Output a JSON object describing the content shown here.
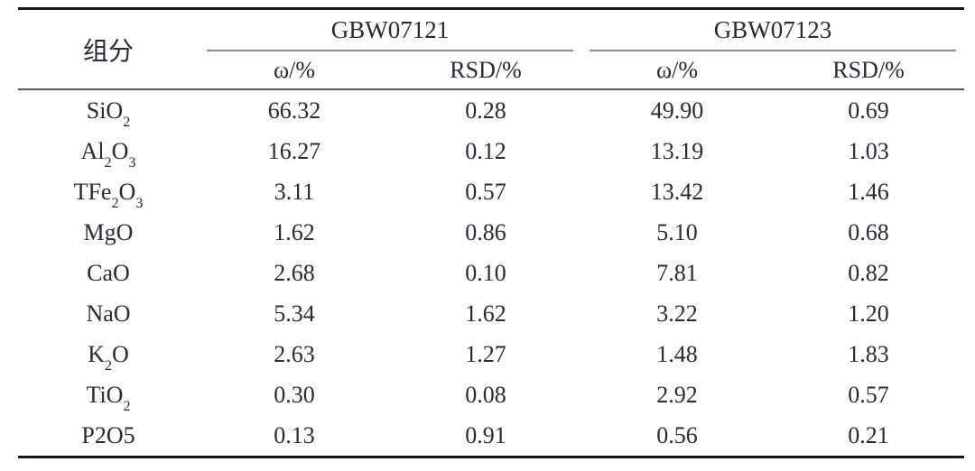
{
  "table": {
    "component_header": "组分",
    "groups": [
      {
        "label": "GBW07121",
        "columns": [
          "ω/%",
          "RSD/%"
        ]
      },
      {
        "label": "GBW07123",
        "columns": [
          "ω/%",
          "RSD/%"
        ]
      }
    ],
    "rows": [
      {
        "component": "SiO_2",
        "values": [
          "66.32",
          "0.28",
          "49.90",
          "0.69"
        ]
      },
      {
        "component": "Al_2O_3",
        "values": [
          "16.27",
          "0.12",
          "13.19",
          "1.03"
        ]
      },
      {
        "component": "TFe_2O_3",
        "values": [
          "3.11",
          "0.57",
          "13.42",
          "1.46"
        ]
      },
      {
        "component": "MgO",
        "values": [
          "1.62",
          "0.86",
          "5.10",
          "0.68"
        ]
      },
      {
        "component": "CaO",
        "values": [
          "2.68",
          "0.10",
          "7.81",
          "0.82"
        ]
      },
      {
        "component": "NaO",
        "values": [
          "5.34",
          "1.62",
          "3.22",
          "1.20"
        ]
      },
      {
        "component": "K_2O",
        "values": [
          "2.63",
          "1.27",
          "1.48",
          "1.83"
        ]
      },
      {
        "component": "TiO_2",
        "values": [
          "0.30",
          "0.08",
          "2.92",
          "0.57"
        ]
      },
      {
        "component": "P2O5",
        "values": [
          "0.13",
          "0.91",
          "0.56",
          "0.21"
        ]
      }
    ],
    "colors": {
      "rule_heavy": "#15181d",
      "rule_mid": "#5a5d63",
      "rule_light": "#8b8e94",
      "text": "#272b33",
      "background": "#ffffff"
    }
  }
}
